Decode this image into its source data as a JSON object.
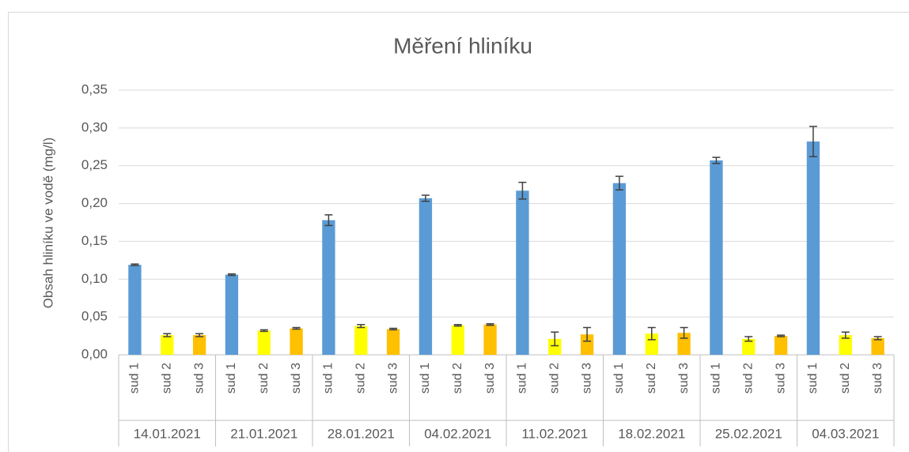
{
  "chart_data": {
    "type": "bar",
    "title": "Měření hliníku",
    "y_label": "Obsah hliníku ve vodě (mg/l)",
    "colors": [
      "#5b9bd5",
      "#ffff00",
      "#ffc000"
    ],
    "error_color": "#404040",
    "grid": true,
    "ylim": [
      0,
      0.35
    ],
    "yticks": [
      {
        "value": 0,
        "label": "0,00"
      },
      {
        "value": 0.05,
        "label": "0,05"
      },
      {
        "value": 0.1,
        "label": "0,10"
      },
      {
        "value": 0.15,
        "label": "0,15"
      },
      {
        "value": 0.2,
        "label": "0,20"
      },
      {
        "value": 0.25,
        "label": "0,25"
      },
      {
        "value": 0.3,
        "label": "0,30"
      },
      {
        "value": 0.35,
        "label": "0,35"
      }
    ],
    "groups": [
      {
        "label": "14.01.2021",
        "categories": [
          "sud 1",
          "sud 2",
          "sud 3"
        ],
        "values": [
          0.119,
          0.026,
          0.026
        ],
        "errors": [
          0.001,
          0.002,
          0.002
        ]
      },
      {
        "label": "21.01.2021",
        "categories": [
          "sud 1",
          "sud 2",
          "sud 3"
        ],
        "values": [
          0.106,
          0.032,
          0.035
        ],
        "errors": [
          0.001,
          0.001,
          0.001
        ]
      },
      {
        "label": "28.01.2021",
        "categories": [
          "sud 1",
          "sud 2",
          "sud 3"
        ],
        "values": [
          0.178,
          0.038,
          0.034
        ],
        "errors": [
          0.007,
          0.002,
          0.001
        ]
      },
      {
        "label": "04.02.2021",
        "categories": [
          "sud 1",
          "sud 2",
          "sud 3"
        ],
        "values": [
          0.207,
          0.039,
          0.04
        ],
        "errors": [
          0.004,
          0.001,
          0.001
        ]
      },
      {
        "label": "11.02.2021",
        "categories": [
          "sud 1",
          "sud 2",
          "sud 3"
        ],
        "values": [
          0.217,
          0.021,
          0.027
        ],
        "errors": [
          0.011,
          0.009,
          0.009
        ]
      },
      {
        "label": "18.02.2021",
        "categories": [
          "sud 1",
          "sud 2",
          "sud 3"
        ],
        "values": [
          0.227,
          0.028,
          0.029
        ],
        "errors": [
          0.009,
          0.008,
          0.007
        ]
      },
      {
        "label": "25.02.2021",
        "categories": [
          "sud 1",
          "sud 2",
          "sud 3"
        ],
        "values": [
          0.257,
          0.021,
          0.025
        ],
        "errors": [
          0.004,
          0.003,
          0.001
        ]
      },
      {
        "label": "04.03.2021",
        "categories": [
          "sud 1",
          "sud 2",
          "sud 3"
        ],
        "values": [
          0.282,
          0.026,
          0.022
        ],
        "errors": [
          0.02,
          0.004,
          0.002
        ]
      }
    ]
  }
}
